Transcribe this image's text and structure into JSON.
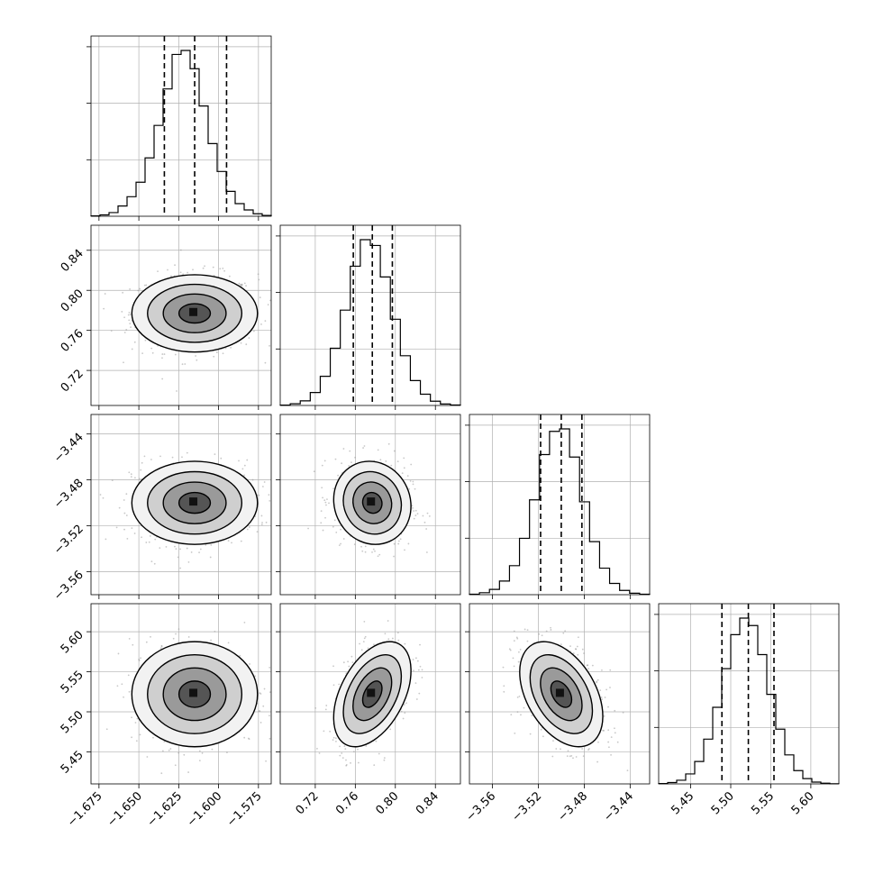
{
  "chart_data": {
    "type": "corner",
    "title": "",
    "grid": true,
    "parameters": [
      {
        "range": [
          -1.68,
          -1.567
        ],
        "ticks": [
          -1.675,
          -1.65,
          -1.625,
          -1.6,
          -1.575
        ],
        "tick_labels": [
          "−1.675",
          "−1.650",
          "−1.625",
          "−1.600",
          "−1.575"
        ],
        "quantiles": [
          -1.634,
          -1.615,
          -1.595
        ],
        "histogram": [
          2,
          8,
          22,
          62,
          118,
          205,
          352,
          548,
          768,
          976,
          1000,
          890,
          665,
          438,
          270,
          150,
          76,
          38,
          15,
          5
        ]
      },
      {
        "range": [
          0.685,
          0.865
        ],
        "ticks": [
          0.72,
          0.76,
          0.8,
          0.84
        ],
        "tick_labels": [
          "0.72",
          "0.76",
          "0.80",
          "0.84"
        ],
        "quantiles": [
          0.758,
          0.777,
          0.797
        ],
        "histogram": [
          2,
          10,
          28,
          78,
          176,
          345,
          575,
          840,
          1000,
          965,
          775,
          520,
          300,
          150,
          68,
          26,
          9,
          3
        ]
      },
      {
        "range": [
          -3.58,
          -3.423
        ],
        "ticks": [
          -3.56,
          -3.52,
          -3.48,
          -3.44
        ],
        "tick_labels": [
          "−3.56",
          "−3.52",
          "−3.48",
          "−3.44"
        ],
        "quantiles": [
          -3.518,
          -3.5,
          -3.482
        ],
        "histogram": [
          3,
          12,
          32,
          82,
          175,
          340,
          572,
          845,
          985,
          1000,
          830,
          560,
          320,
          160,
          68,
          26,
          9,
          3
        ]
      },
      {
        "range": [
          5.41,
          5.635
        ],
        "ticks": [
          5.45,
          5.5,
          5.55,
          5.6
        ],
        "tick_labels": [
          "5.45",
          "5.50",
          "5.55",
          "5.60"
        ],
        "quantiles": [
          5.489,
          5.522,
          5.554
        ],
        "histogram": [
          2,
          8,
          22,
          60,
          135,
          270,
          462,
          695,
          900,
          1000,
          955,
          780,
          540,
          330,
          175,
          80,
          32,
          11,
          4,
          1
        ]
      }
    ],
    "means": [
      -1.615,
      0.777,
      -3.5,
      5.522
    ],
    "sds": [
      0.0197,
      0.0193,
      0.0181,
      0.0328
    ],
    "correlations": [
      [
        0,
        1,
        0.0
      ],
      [
        0,
        2,
        0.0
      ],
      [
        0,
        3,
        0.0
      ],
      [
        1,
        2,
        -0.08
      ],
      [
        1,
        3,
        0.45
      ],
      [
        2,
        3,
        -0.42
      ]
    ],
    "contour_levels_sigma": [
      0.5,
      1.0,
      1.5,
      2.0
    ],
    "samples_per_panel": 600
  }
}
